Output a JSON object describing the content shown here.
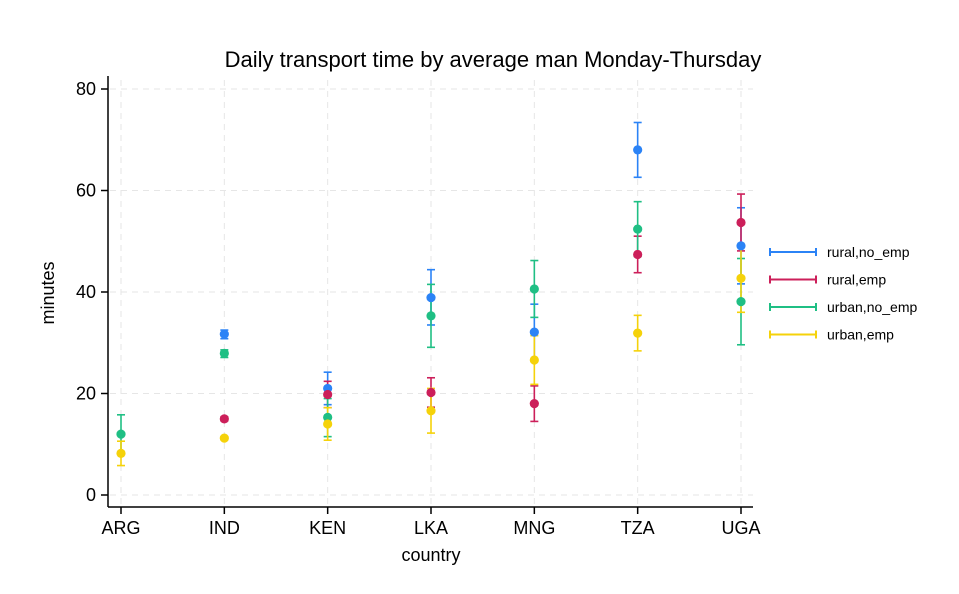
{
  "chart_data": {
    "type": "scatter",
    "title": "Daily transport time by average man Monday-Thursday",
    "xlabel": "country",
    "ylabel": "minutes",
    "categories": [
      "ARG",
      "IND",
      "KEN",
      "LKA",
      "MNG",
      "TZA",
      "UGA"
    ],
    "ylim": [
      -2,
      83
    ],
    "yticks": [
      0,
      20,
      40,
      60,
      80
    ],
    "grid": true,
    "legend_position": "right",
    "series": [
      {
        "name": "rural,no_emp",
        "color": "#2b83f6",
        "points": [
          {
            "x": "IND",
            "y": 31.7,
            "lo": 30.8,
            "hi": 32.5
          },
          {
            "x": "KEN",
            "y": 21.0,
            "lo": 17.8,
            "hi": 24.2
          },
          {
            "x": "LKA",
            "y": 38.9,
            "lo": 33.5,
            "hi": 44.4
          },
          {
            "x": "MNG",
            "y": 32.1,
            "lo": 26.6,
            "hi": 37.6
          },
          {
            "x": "TZA",
            "y": 68.0,
            "lo": 62.6,
            "hi": 73.4
          },
          {
            "x": "UGA",
            "y": 49.1,
            "lo": 41.6,
            "hi": 56.6
          }
        ]
      },
      {
        "name": "rural,emp",
        "color": "#cc1f5a",
        "points": [
          {
            "x": "IND",
            "y": 15.0,
            "lo": 14.6,
            "hi": 15.4
          },
          {
            "x": "KEN",
            "y": 19.8,
            "lo": 17.2,
            "hi": 22.4
          },
          {
            "x": "LKA",
            "y": 20.2,
            "lo": 17.3,
            "hi": 23.1
          },
          {
            "x": "MNG",
            "y": 18.0,
            "lo": 14.5,
            "hi": 21.5
          },
          {
            "x": "TZA",
            "y": 47.4,
            "lo": 43.8,
            "hi": 51.0
          },
          {
            "x": "UGA",
            "y": 53.7,
            "lo": 48.1,
            "hi": 59.3
          }
        ]
      },
      {
        "name": "urban,no_emp",
        "color": "#1fbf84",
        "points": [
          {
            "x": "ARG",
            "y": 12.0,
            "lo": 8.2,
            "hi": 15.8
          },
          {
            "x": "IND",
            "y": 27.9,
            "lo": 27.1,
            "hi": 28.6
          },
          {
            "x": "KEN",
            "y": 15.3,
            "lo": 11.5,
            "hi": 19.0
          },
          {
            "x": "LKA",
            "y": 35.3,
            "lo": 29.1,
            "hi": 41.5
          },
          {
            "x": "MNG",
            "y": 40.6,
            "lo": 35.0,
            "hi": 46.2
          },
          {
            "x": "TZA",
            "y": 52.4,
            "lo": 47.0,
            "hi": 57.8
          },
          {
            "x": "UGA",
            "y": 38.1,
            "lo": 29.6,
            "hi": 46.6
          }
        ]
      },
      {
        "name": "urban,emp",
        "color": "#f5d20a",
        "points": [
          {
            "x": "ARG",
            "y": 8.2,
            "lo": 5.8,
            "hi": 10.6
          },
          {
            "x": "IND",
            "y": 11.2,
            "lo": 10.9,
            "hi": 11.5
          },
          {
            "x": "KEN",
            "y": 14.0,
            "lo": 10.8,
            "hi": 17.2
          },
          {
            "x": "LKA",
            "y": 16.6,
            "lo": 12.2,
            "hi": 21.0
          },
          {
            "x": "MNG",
            "y": 26.6,
            "lo": 21.8,
            "hi": 31.4
          },
          {
            "x": "TZA",
            "y": 31.9,
            "lo": 28.4,
            "hi": 35.4
          },
          {
            "x": "UGA",
            "y": 42.7,
            "lo": 36.0,
            "hi": 49.4
          }
        ]
      }
    ]
  }
}
